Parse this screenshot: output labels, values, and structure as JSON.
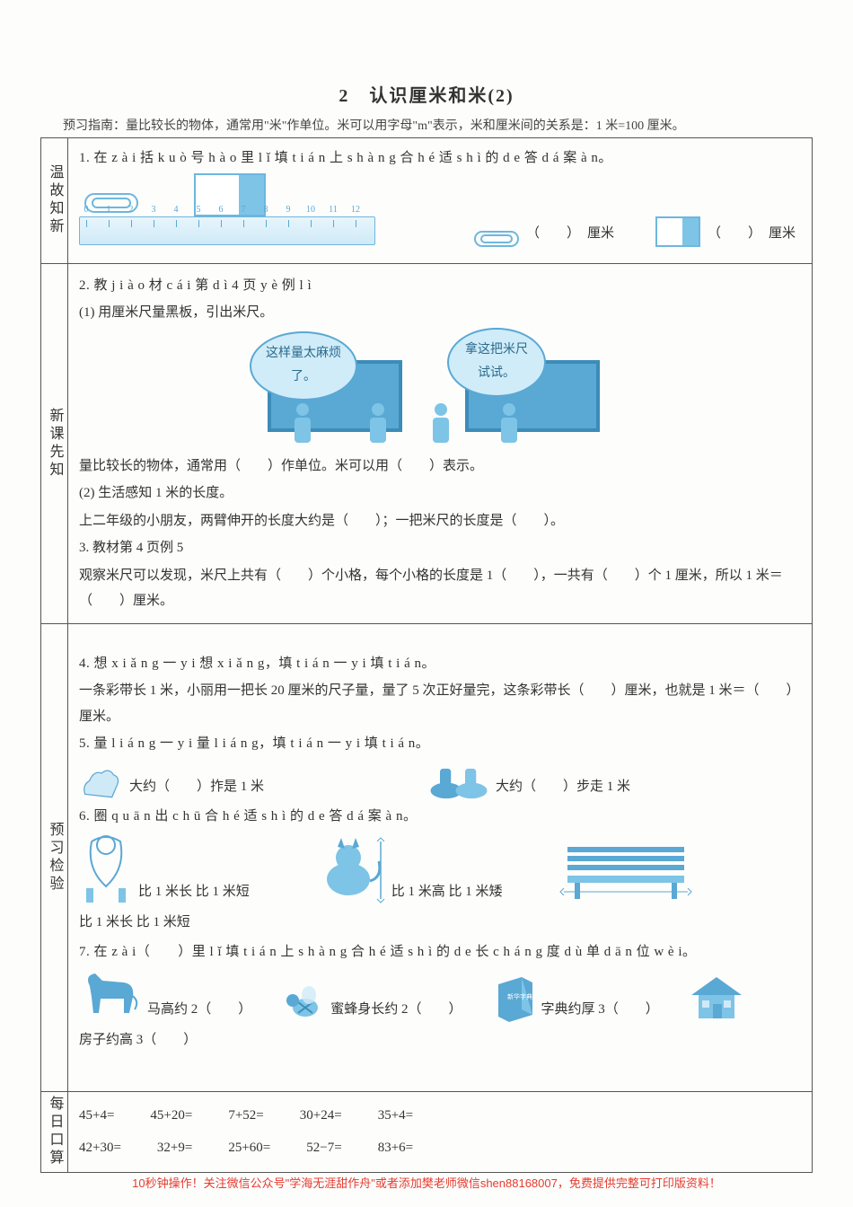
{
  "title": "2　认识厘米和米(2)",
  "subtitle": "预习指南：量比较长的物体，通常用\"米\"作单位。米可以用字母\"m\"表示，米和厘米间的关系是：1 米=100 厘米。",
  "sections": {
    "s1": {
      "label": "温故知新"
    },
    "s2": {
      "label": "新课先知"
    },
    "s3": {
      "label": "预习检验"
    },
    "s4": {
      "label": "每日口算"
    }
  },
  "q1": {
    "prompt": "1. 在 z à i 括 k u ò 号 h à o 里 l ǐ 填 t i á n 上 s h à n g 合 h é 适 s h ì 的 d e 答 d á 案 à n。",
    "ruler_ticks": [
      "0",
      "1",
      "2",
      "3",
      "4",
      "5",
      "6",
      "7",
      "8",
      "9",
      "10",
      "11",
      "12"
    ],
    "unit_a": "厘米",
    "unit_b": "厘米"
  },
  "q2": {
    "prompt": "2. 教 j i à o 材 c á i 第 d ì 4 页 y è 例 l ì",
    "sub1": "(1) 用厘米尺量黑板，引出米尺。",
    "bubble1": "这样量太麻烦了。",
    "bubble2": "拿这把米尺试试。",
    "line1": "量比较长的物体，通常用（　　）作单位。米可以用（　　）表示。",
    "sub2": "(2) 生活感知 1 米的长度。",
    "line2": "上二年级的小朋友，两臂伸开的长度大约是（　　）；一把米尺的长度是（　　）。",
    "sub3": "3. 教材第 4 页例 5",
    "line3": "观察米尺可以发现，米尺上共有（　　）个小格，每个小格的长度是 1（　　），一共有（　　）个 1 厘米，所以 1 米＝（　　）厘米。"
  },
  "q4": {
    "prompt": "4. 想 x i ǎ n g 一 y i 想 x i ǎ n g，填 t i á n 一 y i 填 t i á n。",
    "line": "一条彩带长 1 米，小丽用一把长 20 厘米的尺子量，量了 5 次正好量完，这条彩带长（　　）厘米，也就是 1 米＝（　　）厘米。"
  },
  "q5": {
    "prompt": "5. 量 l i á n g 一 y i 量 l i á n g，填 t i á n 一 y i 填 t i á n。",
    "hand": "大约（　　）拃是 1 米",
    "feet": "大约（　　）步走 1 米"
  },
  "q6": {
    "prompt": "6. 圈 q u ā n 出 c h ū 合 h é 适 s h ì 的 d e 答 d á 案 à n。",
    "rope": "比 1 米长 比 1 米短",
    "cat": "比 1 米高 比 1 米矮",
    "bench": "比 1 米长 比 1 米短"
  },
  "q7": {
    "prompt": "7. 在 z à i（　　）里 l ǐ 填 t i á n 上 s h à n g 合 h é 适 s h ì 的 d e 长 c h á n g 度 d ù 单 d ā n 位 w è i。",
    "horse": "马高约 2（　　）",
    "bee": "蜜蜂身长约 2（　　）",
    "book": "字典约厚 3（　　）",
    "house": "房子约高 3（　　）"
  },
  "arith": {
    "r1": [
      "45+4=",
      "45+20=",
      "7+52=",
      "30+24=",
      "35+4="
    ],
    "r2": [
      "42+30=",
      "32+9=",
      "25+60=",
      "52−7=",
      "83+6="
    ]
  },
  "footer": "10秒钟操作！关注微信公众号\"学海无涯甜作舟\"或者添加樊老师微信shen88168007，免费提供完整可打印版资料！",
  "colors": {
    "accent": "#5aa8d4",
    "accent_light": "#cfeaf7",
    "accent_fill": "#7dc4e6",
    "border": "#555555",
    "text": "#333333",
    "footer": "#e63b2e"
  }
}
